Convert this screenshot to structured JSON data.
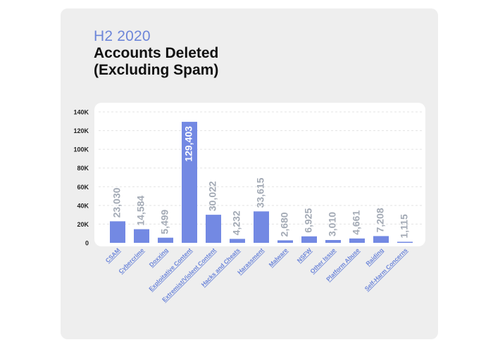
{
  "header": {
    "period": "H2 2020",
    "title": "Accounts Deleted (Excluding Spam)"
  },
  "colors": {
    "bar": "#7389e3",
    "label": "#a3aab5",
    "bar_label_inside": "#ffffff",
    "axis_text": "#222222",
    "category_text": "#6d86d9"
  },
  "chart_data": {
    "type": "bar",
    "categories": [
      "CSAM",
      "Cybercrime",
      "Doxxing",
      "Exploitative Content",
      "Extremist/Violent Content",
      "Hacks and Cheats",
      "Harassment",
      "Malware",
      "NSFW",
      "Other Issue",
      "Platform Abuse",
      "Raiding",
      "Self-Harm Concerns"
    ],
    "values": [
      23030,
      14584,
      5499,
      129403,
      30022,
      4232,
      33615,
      2680,
      6925,
      3010,
      4661,
      7208,
      1115
    ],
    "value_labels": [
      "23,030",
      "14,584",
      "5,499",
      "129,403",
      "30,022",
      "4,232",
      "33,615",
      "2,680",
      "6,925",
      "3,010",
      "4,661",
      "7,208",
      "1,115"
    ],
    "yticks": [
      0,
      20000,
      40000,
      60000,
      80000,
      100000,
      120000,
      140000
    ],
    "ytick_labels": [
      "0",
      "20K",
      "40K",
      "60K",
      "80K",
      "100K",
      "120K",
      "140K"
    ],
    "ylim": [
      0,
      140000
    ],
    "grid": true,
    "title": "Accounts Deleted (Excluding Spam)",
    "subtitle": "H2 2020"
  }
}
